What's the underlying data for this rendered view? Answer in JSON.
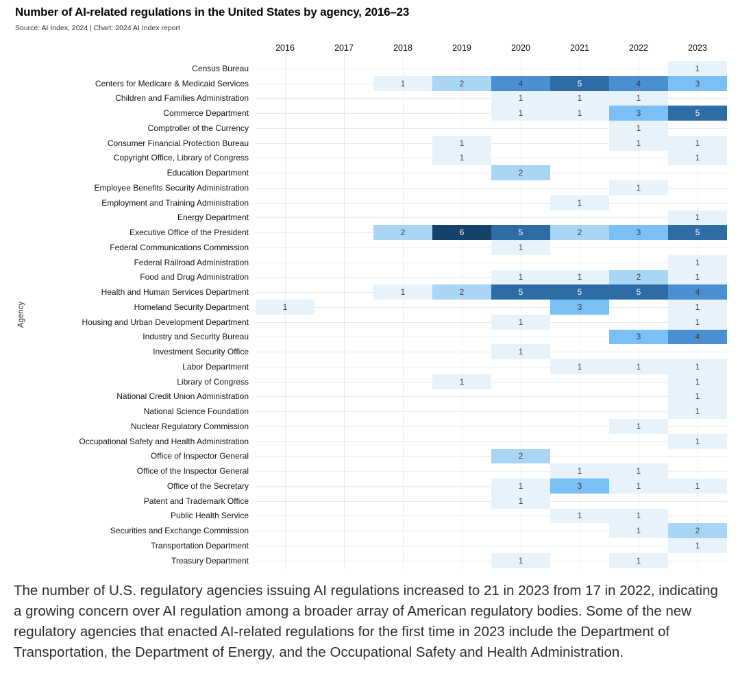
{
  "header": {
    "title": "Number of AI-related regulations in the United States by agency, 2016–23",
    "source_line": "Source: AI Index, 2024 | Chart: 2024 AI Index report"
  },
  "chart_data": {
    "type": "heatmap",
    "title": "Number of AI-related regulations in the United States by agency, 2016–23",
    "xlabel": "",
    "ylabel": "Agency",
    "legend_position": "none",
    "grid": true,
    "columns": [
      "2016",
      "2017",
      "2018",
      "2019",
      "2020",
      "2021",
      "2022",
      "2023"
    ],
    "rows": [
      {
        "agency": "Census Bureau",
        "values": {
          "2023": 1
        }
      },
      {
        "agency": "Centers for Medicare & Medicaid Services",
        "values": {
          "2018": 1,
          "2019": 2,
          "2020": 4,
          "2021": 5,
          "2022": 4,
          "2023": 3
        }
      },
      {
        "agency": "Children and Families Administration",
        "values": {
          "2020": 1,
          "2021": 1,
          "2022": 1
        }
      },
      {
        "agency": "Commerce Department",
        "values": {
          "2020": 1,
          "2021": 1,
          "2022": 3,
          "2023": 5
        }
      },
      {
        "agency": "Comptroller of the Currency",
        "values": {
          "2022": 1
        }
      },
      {
        "agency": "Consumer Financial Protection Bureau",
        "values": {
          "2019": 1,
          "2022": 1,
          "2023": 1
        }
      },
      {
        "agency": "Copyright Office, Library of Congress",
        "values": {
          "2019": 1,
          "2023": 1
        }
      },
      {
        "agency": "Education Department",
        "values": {
          "2020": 2
        }
      },
      {
        "agency": "Employee Benefits Security Administration",
        "values": {
          "2022": 1
        }
      },
      {
        "agency": "Employment and Training Administration",
        "values": {
          "2021": 1
        }
      },
      {
        "agency": "Energy Department",
        "values": {
          "2023": 1
        }
      },
      {
        "agency": "Executive Office of the President",
        "values": {
          "2018": 2,
          "2019": 6,
          "2020": 5,
          "2021": 2,
          "2022": 3,
          "2023": 5
        }
      },
      {
        "agency": "Federal Communications Commission",
        "values": {
          "2020": 1
        }
      },
      {
        "agency": "Federal Railroad Administration",
        "values": {
          "2023": 1
        }
      },
      {
        "agency": "Food and Drug Administration",
        "values": {
          "2020": 1,
          "2021": 1,
          "2022": 2,
          "2023": 1
        }
      },
      {
        "agency": "Health and Human Services Department",
        "values": {
          "2018": 1,
          "2019": 2,
          "2020": 5,
          "2021": 5,
          "2022": 5,
          "2023": 4
        }
      },
      {
        "agency": "Homeland Security Department",
        "values": {
          "2016": 1,
          "2021": 3,
          "2023": 1
        }
      },
      {
        "agency": "Housing and Urban Development Department",
        "values": {
          "2020": 1,
          "2023": 1
        }
      },
      {
        "agency": "Industry and Security Bureau",
        "values": {
          "2022": 3,
          "2023": 4
        }
      },
      {
        "agency": "Investment Security Office",
        "values": {
          "2020": 1
        }
      },
      {
        "agency": "Labor Department",
        "values": {
          "2021": 1,
          "2022": 1,
          "2023": 1
        }
      },
      {
        "agency": "Library of Congress",
        "values": {
          "2019": 1,
          "2023": 1
        }
      },
      {
        "agency": "National Credit Union Administration",
        "values": {
          "2023": 1
        }
      },
      {
        "agency": "National Science Foundation",
        "values": {
          "2023": 1
        }
      },
      {
        "agency": "Nuclear Regulatory Commission",
        "values": {
          "2022": 1
        }
      },
      {
        "agency": "Occupational Safety and Health Administration",
        "values": {
          "2023": 1
        }
      },
      {
        "agency": "Office of Inspector General",
        "values": {
          "2020": 2
        }
      },
      {
        "agency": "Office of the Inspector General",
        "values": {
          "2021": 1,
          "2022": 1
        }
      },
      {
        "agency": "Office of the Secretary",
        "values": {
          "2020": 1,
          "2021": 3,
          "2022": 1,
          "2023": 1
        }
      },
      {
        "agency": "Patent and Trademark Office",
        "values": {
          "2020": 1
        }
      },
      {
        "agency": "Public Health Service",
        "values": {
          "2021": 1,
          "2022": 1
        }
      },
      {
        "agency": "Securities and Exchange Commission",
        "values": {
          "2022": 1,
          "2023": 2
        }
      },
      {
        "agency": "Transportation Department",
        "values": {
          "2023": 1
        }
      },
      {
        "agency": "Treasury Department",
        "values": {
          "2020": 1,
          "2022": 1
        }
      }
    ],
    "value_colors": {
      "1": "#E8F2FB",
      "2": "#A9D6F5",
      "3": "#7BBFF7",
      "4": "#4A8FD1",
      "5": "#2E6CA6",
      "6": "#14426B"
    },
    "cell_text_color_dark": "#3E3E3E",
    "cell_text_color_light": "#FFFFFF",
    "light_text_min_value": 5
  },
  "caption": "The number of U.S. regulatory agencies issuing AI regulations increased to 21 in 2023 from 17 in 2022, indicating a growing concern over AI regulation among a broader array of American regulatory bodies. Some of the new regulatory agencies that enacted AI-related regulations for the first time in 2023 include the Department of Transportation, the Department of Energy, and the Occupational Safety and Health Administration."
}
